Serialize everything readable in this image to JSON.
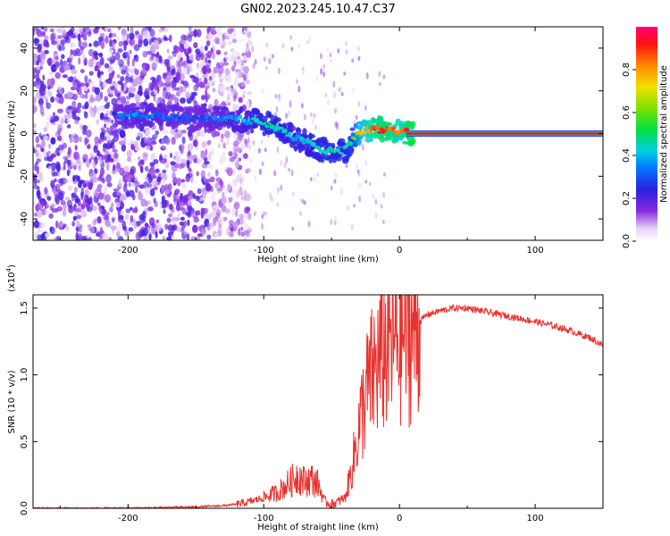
{
  "figure": {
    "title": "GN02.2023.245.10.47.C37",
    "colorbar": {
      "label": "Normalized spectral amplitude",
      "ticks": [
        "0.0",
        "0.2",
        "0.4",
        "0.6",
        "0.8"
      ],
      "range": [
        0,
        1
      ]
    }
  },
  "chart_data": [
    {
      "type": "heatmap",
      "title": "GN02.2023.245.10.47.C37",
      "xlabel": "Height of straight line (km)",
      "ylabel": "Frequency (Hz)",
      "xlim": [
        -270,
        150
      ],
      "ylim": [
        -50,
        50
      ],
      "xticks": [
        -200,
        -100,
        0,
        100
      ],
      "yticks": [
        -40,
        -20,
        0,
        20,
        40
      ],
      "xtick_labels": [
        "-200",
        "-100",
        "0",
        "100"
      ],
      "ytick_labels": [
        "-40",
        "-20",
        "0",
        "20",
        "40"
      ],
      "colorscale": "rainbow (0 = white/lavender, 1 = red/magenta)",
      "ridge": {
        "description": "dominant frequency ridge",
        "x": [
          -210,
          -190,
          -170,
          -150,
          -130,
          -110,
          -100,
          -90,
          -80,
          -70,
          -60,
          -50,
          -40,
          -35,
          -30,
          -20,
          -10,
          0,
          10,
          50,
          100,
          150
        ],
        "frequency": [
          8,
          9,
          8,
          7,
          7,
          6,
          5,
          3,
          -1,
          -4,
          -7,
          -8,
          -8,
          -3,
          1,
          2,
          2,
          1,
          0,
          0,
          0,
          0
        ],
        "amplitude": [
          0.3,
          0.35,
          0.32,
          0.3,
          0.35,
          0.4,
          0.45,
          0.45,
          0.4,
          0.42,
          0.45,
          0.45,
          0.45,
          0.5,
          0.7,
          0.85,
          0.9,
          0.8,
          0.95,
          1.0,
          1.0,
          1.0
        ]
      },
      "noise_region": {
        "x_range": [
          -270,
          -120
        ],
        "frequency_range": [
          -50,
          50
        ],
        "amplitude": "low (0.0-0.25)"
      }
    },
    {
      "type": "line",
      "xlabel": "Height of straight line (km)",
      "ylabel": "SNR (10 * v/v)",
      "y_multiplier": "(x10^4)",
      "xlim": [
        -270,
        150
      ],
      "ylim": [
        0,
        1.6
      ],
      "xticks": [
        -200,
        -100,
        0,
        100
      ],
      "yticks": [
        0.0,
        0.5,
        1.0,
        1.5
      ],
      "xtick_labels": [
        "-200",
        "-100",
        "0",
        "100"
      ],
      "ytick_labels": [
        "0.0",
        "0.5",
        "1.0",
        "1.5"
      ],
      "series": [
        {
          "color": "#e8322e",
          "x": [
            -270,
            -250,
            -200,
            -150,
            -130,
            -120,
            -110,
            -100,
            -90,
            -80,
            -75,
            -70,
            -65,
            -60,
            -55,
            -50,
            -45,
            -40,
            -35,
            -30,
            -25,
            -20,
            -15,
            -10,
            -5,
            0,
            5,
            10,
            15,
            20,
            30,
            40,
            50,
            60,
            80,
            100,
            120,
            140,
            150
          ],
          "y": [
            0.0,
            0.0,
            0.0,
            0.01,
            0.02,
            0.03,
            0.05,
            0.08,
            0.12,
            0.2,
            0.25,
            0.2,
            0.22,
            0.18,
            0.05,
            0.03,
            0.05,
            0.08,
            0.3,
            0.6,
            0.85,
            1.0,
            1.1,
            1.2,
            1.25,
            1.3,
            1.32,
            1.35,
            1.4,
            1.45,
            1.48,
            1.5,
            1.5,
            1.48,
            1.44,
            1.4,
            1.35,
            1.28,
            1.22
          ]
        }
      ]
    }
  ]
}
